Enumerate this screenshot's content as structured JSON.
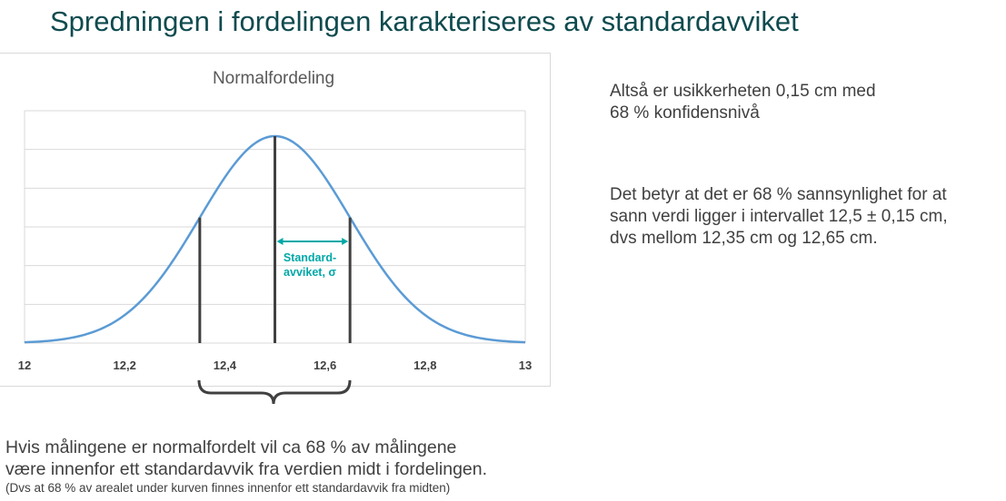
{
  "slide": {
    "title": "Spredningen i fordelingen karakteriseres av standardavviket"
  },
  "notes": {
    "line1": "Altså er usikkerheten 0,15 cm med",
    "line2": "68 % konfidensnivå",
    "line3": "Det betyr at det er 68 % sannsynlighet for at",
    "line4": "sann verdi ligger i intervallet 12,5 ± 0,15 cm,",
    "line5": "dvs mellom 12,35 cm og 12,65 cm."
  },
  "bottom": {
    "line1": "Hvis målingene er normalfordelt vil ca 68 % av målingene",
    "line2": "være innenfor ett standardavvik fra verdien midt i fordelingen.",
    "small": "(Dvs at 68 % av arealet under kurven finnes innenfor ett standardavvik fra midten)"
  },
  "chart_data": {
    "type": "line",
    "title": "Normalfordeling",
    "xlabel": "",
    "ylabel": "",
    "xlim": [
      12,
      13
    ],
    "x_ticks": [
      "12",
      "12,2",
      "12,4",
      "12,6",
      "12,8",
      "13"
    ],
    "mean": 12.5,
    "sigma": 0.15,
    "vertical_lines_x": [
      12.35,
      12.5,
      12.65
    ],
    "sigma_label_line1": "Standard-",
    "sigma_label_line2": "avviket, σ",
    "grid": true,
    "colors": {
      "curve": "#5b9bd5",
      "lines": "#404040",
      "arrow": "#00a8a8",
      "grid": "#d9d9d9"
    }
  }
}
